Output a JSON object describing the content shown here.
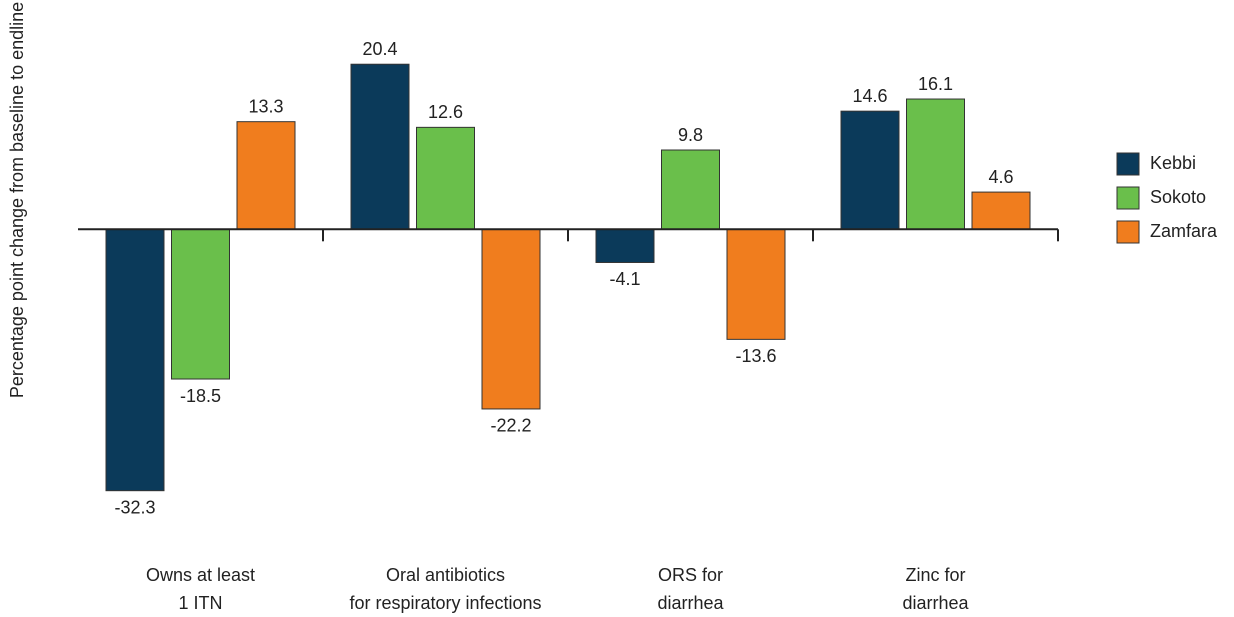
{
  "chart_data": {
    "type": "bar",
    "y_label": "Percentage point change from baseline to endline",
    "categories": [
      "Owns at least\n1 ITN",
      "Oral antibiotics\nfor respiratory infections",
      "ORS for\ndiarrhea",
      "Zinc for\ndiarrhea"
    ],
    "series": [
      {
        "name": "Kebbi",
        "color": "#0b3a5a",
        "values": [
          -32.3,
          20.4,
          -4.1,
          14.6
        ]
      },
      {
        "name": "Sokoto",
        "color": "#6abf4b",
        "values": [
          -18.5,
          12.6,
          9.8,
          16.1
        ]
      },
      {
        "name": "Zamfara",
        "color": "#f07d1e",
        "values": [
          13.3,
          -22.2,
          -13.6,
          4.6
        ]
      }
    ],
    "ylim": [
      -40,
      25
    ]
  }
}
